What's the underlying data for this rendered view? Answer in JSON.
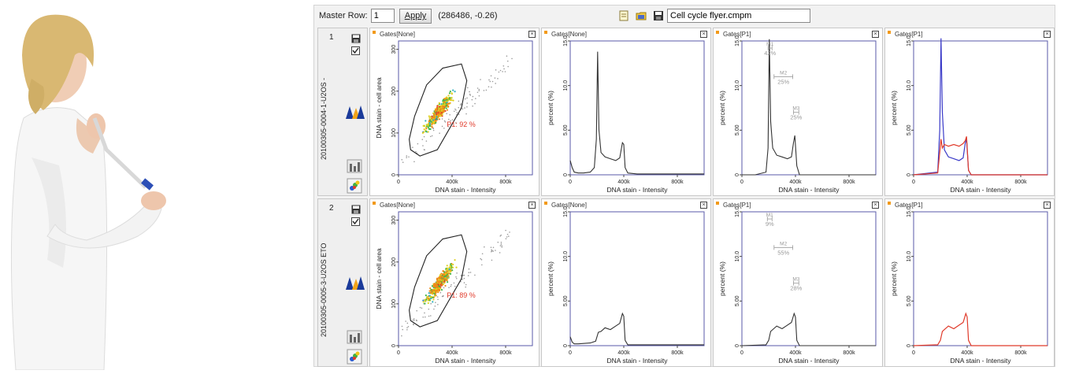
{
  "toolbar": {
    "master_row_label": "Master Row:",
    "master_row_value": "1",
    "apply_label": "Apply",
    "coord_readout": "(286486, -0.26)",
    "file_name": "Cell cycle flyer.cmpm"
  },
  "colors": {
    "gate": "#222222",
    "histogram": "#333333",
    "series_blue": "#3a3ac8",
    "series_red": "#e03a2a",
    "gate_label": "#e03a2a",
    "marker": "#999999",
    "dot": "#f29a1a"
  },
  "rows": [
    {
      "number": "1",
      "sample_label": "20100305-0004-1-U2OS -",
      "panels": [
        {
          "title": "Gates[None]",
          "type": "scatter",
          "xlabel": "DNA stain - Intensity",
          "ylabel": "DNA stain - cell area",
          "xticks": [
            "0",
            "400k",
            "800k"
          ],
          "yticks": [
            "0",
            "100",
            "200",
            "300"
          ],
          "gate_label": "P1: 92 %"
        },
        {
          "title": "Gates[None]",
          "type": "histogram",
          "xlabel": "DNA stain - Intensity",
          "ylabel": "percent (%)",
          "xticks": [
            "0",
            "400k",
            "800k"
          ],
          "yticks": [
            "0",
            "5.00",
            "10.0",
            "15.0"
          ]
        },
        {
          "title": "Gates[P1]",
          "type": "histogram",
          "xlabel": "DNA stain - Intensity",
          "ylabel": "percent (%)",
          "xticks": [
            "0",
            "400k",
            "800k"
          ],
          "yticks": [
            "0",
            "5.00",
            "10.0",
            "15.0"
          ],
          "markers": [
            {
              "name": "M1",
              "pct": "42%"
            },
            {
              "name": "M2",
              "pct": "25%"
            },
            {
              "name": "M3",
              "pct": "25%"
            }
          ]
        },
        {
          "title": "Gates[P1]",
          "type": "overlay",
          "xlabel": "DNA stain - Intensity",
          "ylabel": "percent (%)",
          "xticks": [
            "0",
            "400k",
            "800k"
          ],
          "yticks": [
            "0",
            "5.00",
            "10.0",
            "15.0"
          ]
        }
      ]
    },
    {
      "number": "2",
      "sample_label": "20100305-0005-3-U2OS ETO",
      "panels": [
        {
          "title": "Gates[None]",
          "type": "scatter",
          "xlabel": "DNA stain - Intensity",
          "ylabel": "DNA stain - cell area",
          "xticks": [
            "0",
            "400k",
            "800k"
          ],
          "yticks": [
            "0",
            "100",
            "200",
            "300"
          ],
          "gate_label": "P1: 89 %"
        },
        {
          "title": "Gates[None]",
          "type": "histogram",
          "xlabel": "DNA stain - Intensity",
          "ylabel": "percent (%)",
          "xticks": [
            "0",
            "400k",
            "800k"
          ],
          "yticks": [
            "0",
            "5.00",
            "10.0",
            "15.0"
          ]
        },
        {
          "title": "Gates[P1]",
          "type": "histogram",
          "xlabel": "DNA stain - Intensity",
          "ylabel": "percent (%)",
          "xticks": [
            "0",
            "400k",
            "800k"
          ],
          "yticks": [
            "0",
            "5.00",
            "10.0",
            "15.0"
          ],
          "markers": [
            {
              "name": "M1",
              "pct": "9%"
            },
            {
              "name": "M2",
              "pct": "55%"
            },
            {
              "name": "M3",
              "pct": "28%"
            }
          ]
        },
        {
          "title": "Gates[P1]",
          "type": "overlay",
          "xlabel": "DNA stain - Intensity",
          "ylabel": "percent (%)",
          "xticks": [
            "0",
            "400k",
            "800k"
          ],
          "yticks": [
            "0",
            "5.00",
            "10.0",
            "15.0"
          ]
        }
      ]
    }
  ],
  "chart_data": [
    {
      "type": "scatter",
      "row": 1,
      "title": "Gates[None]",
      "xlabel": "DNA stain - Intensity",
      "ylabel": "DNA stain - cell area",
      "xlim": [
        0,
        1000000
      ],
      "ylim": [
        0,
        320
      ],
      "cluster": {
        "center": [
          300000,
          150
        ],
        "spread": [
          180000,
          70
        ]
      },
      "gate": {
        "name": "P1",
        "percent": 92
      }
    },
    {
      "type": "line",
      "row": 1,
      "title": "Gates[None]",
      "xlabel": "DNA stain - Intensity",
      "ylabel": "percent (%)",
      "xlim": [
        0,
        1000000
      ],
      "ylim": [
        0,
        15
      ],
      "x": [
        0,
        15000,
        30000,
        60000,
        100000,
        150000,
        180000,
        195000,
        205000,
        215000,
        230000,
        260000,
        300000,
        340000,
        370000,
        390000,
        400000,
        410000,
        430000,
        500000,
        600000,
        700000,
        800000,
        900000,
        1000000
      ],
      "values": [
        1.6,
        0.8,
        0.3,
        0.2,
        0.2,
        0.3,
        0.8,
        4.0,
        13.8,
        5.0,
        2.5,
        2.0,
        1.8,
        1.6,
        1.9,
        3.6,
        3.4,
        0.8,
        0.2,
        0.1,
        0.1,
        0.1,
        0.1,
        0.1,
        0.1
      ]
    },
    {
      "type": "line",
      "row": 1,
      "title": "Gates[P1]",
      "xlabel": "DNA stain - Intensity",
      "ylabel": "percent (%)",
      "xlim": [
        0,
        1000000
      ],
      "ylim": [
        0,
        15
      ],
      "x": [
        0,
        100000,
        180000,
        195000,
        205000,
        215000,
        230000,
        260000,
        300000,
        340000,
        370000,
        385000,
        395000,
        410000,
        430000,
        500000,
        1000000
      ],
      "values": [
        0,
        0,
        0.3,
        3.0,
        15.2,
        6.0,
        3.0,
        2.2,
        2.0,
        1.8,
        2.0,
        3.6,
        4.4,
        1.0,
        0,
        0,
        0
      ],
      "markers": [
        {
          "name": "M1",
          "percent": 42,
          "x_range": [
            195000,
            225000
          ]
        },
        {
          "name": "M2",
          "percent": 25,
          "x_range": [
            240000,
            380000
          ]
        },
        {
          "name": "M3",
          "percent": 25,
          "x_range": [
            385000,
            425000
          ]
        }
      ]
    },
    {
      "type": "line",
      "row": 1,
      "title": "Gates[P1]",
      "xlabel": "DNA stain - Intensity",
      "ylabel": "percent (%)",
      "xlim": [
        0,
        1000000
      ],
      "ylim": [
        0,
        15
      ],
      "x": [
        0,
        180000,
        195000,
        205000,
        215000,
        230000,
        260000,
        300000,
        340000,
        370000,
        385000,
        395000,
        410000,
        430000,
        1000000
      ],
      "series": [
        {
          "values": [
            0,
            0.3,
            5.0,
            15.3,
            7.0,
            2.8,
            2.0,
            1.8,
            1.6,
            1.9,
            3.5,
            4.0,
            0.5,
            0,
            0
          ]
        },
        {
          "values": [
            0,
            0.2,
            2.5,
            4.0,
            3.0,
            3.4,
            3.2,
            3.4,
            3.2,
            3.5,
            3.8,
            4.3,
            0.5,
            0,
            0
          ]
        }
      ]
    },
    {
      "type": "scatter",
      "row": 2,
      "title": "Gates[None]",
      "xlabel": "DNA stain - Intensity",
      "ylabel": "DNA stain - cell area",
      "xlim": [
        0,
        1000000
      ],
      "ylim": [
        0,
        320
      ],
      "cluster": {
        "center": [
          310000,
          150
        ],
        "spread": [
          180000,
          70
        ]
      },
      "gate": {
        "name": "P1",
        "percent": 89
      }
    },
    {
      "type": "line",
      "row": 2,
      "title": "Gates[None]",
      "xlabel": "DNA stain - Intensity",
      "ylabel": "percent (%)",
      "xlim": [
        0,
        1000000
      ],
      "ylim": [
        0,
        15
      ],
      "x": [
        0,
        15000,
        30000,
        60000,
        150000,
        190000,
        210000,
        230000,
        260000,
        300000,
        340000,
        370000,
        390000,
        400000,
        410000,
        430000,
        1000000
      ],
      "values": [
        1.0,
        0.4,
        0.2,
        0.2,
        0.3,
        0.5,
        1.5,
        1.6,
        2.0,
        1.8,
        2.2,
        2.5,
        3.6,
        3.3,
        0.6,
        0.1,
        0.1
      ]
    },
    {
      "type": "line",
      "row": 2,
      "title": "Gates[P1]",
      "xlabel": "DNA stain - Intensity",
      "ylabel": "percent (%)",
      "xlim": [
        0,
        1000000
      ],
      "ylim": [
        0,
        15
      ],
      "x": [
        0,
        180000,
        200000,
        215000,
        230000,
        260000,
        300000,
        340000,
        370000,
        390000,
        400000,
        410000,
        430000,
        1000000
      ],
      "values": [
        0,
        0.1,
        0.6,
        1.6,
        1.8,
        2.2,
        1.9,
        2.3,
        2.6,
        3.6,
        3.2,
        0.6,
        0,
        0
      ],
      "markers": [
        {
          "name": "M1",
          "percent": 9,
          "x_range": [
            190000,
            225000
          ]
        },
        {
          "name": "M2",
          "percent": 55,
          "x_range": [
            240000,
            380000
          ]
        },
        {
          "name": "M3",
          "percent": 28,
          "x_range": [
            385000,
            425000
          ]
        }
      ]
    },
    {
      "type": "line",
      "row": 2,
      "title": "Gates[P1]",
      "xlabel": "DNA stain - Intensity",
      "ylabel": "percent (%)",
      "xlim": [
        0,
        1000000
      ],
      "ylim": [
        0,
        15
      ],
      "x": [
        0,
        180000,
        200000,
        215000,
        230000,
        260000,
        300000,
        340000,
        370000,
        390000,
        400000,
        410000,
        430000,
        1000000
      ],
      "series": [
        {
          "values": [
            0,
            0.1,
            0.6,
            1.6,
            1.8,
            2.2,
            1.9,
            2.3,
            2.6,
            3.6,
            3.2,
            0.6,
            0,
            0
          ]
        }
      ]
    }
  ]
}
